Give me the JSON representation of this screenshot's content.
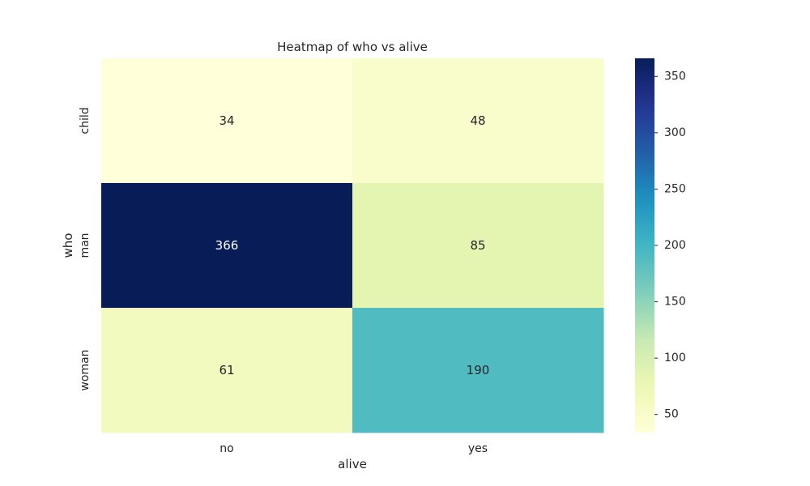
{
  "chart_data": {
    "type": "heatmap",
    "title": "Heatmap of who vs alive",
    "xlabel": "alive",
    "ylabel": "who",
    "x_categories": [
      "no",
      "yes"
    ],
    "y_categories": [
      "child",
      "man",
      "woman"
    ],
    "values": [
      [
        34,
        48
      ],
      [
        366,
        85
      ],
      [
        61,
        190
      ]
    ],
    "colormap": "YlGnBu",
    "colorbar": {
      "min": 34,
      "max": 366,
      "ticks": [
        50,
        100,
        150,
        200,
        250,
        300,
        350
      ]
    },
    "annotate": true
  }
}
